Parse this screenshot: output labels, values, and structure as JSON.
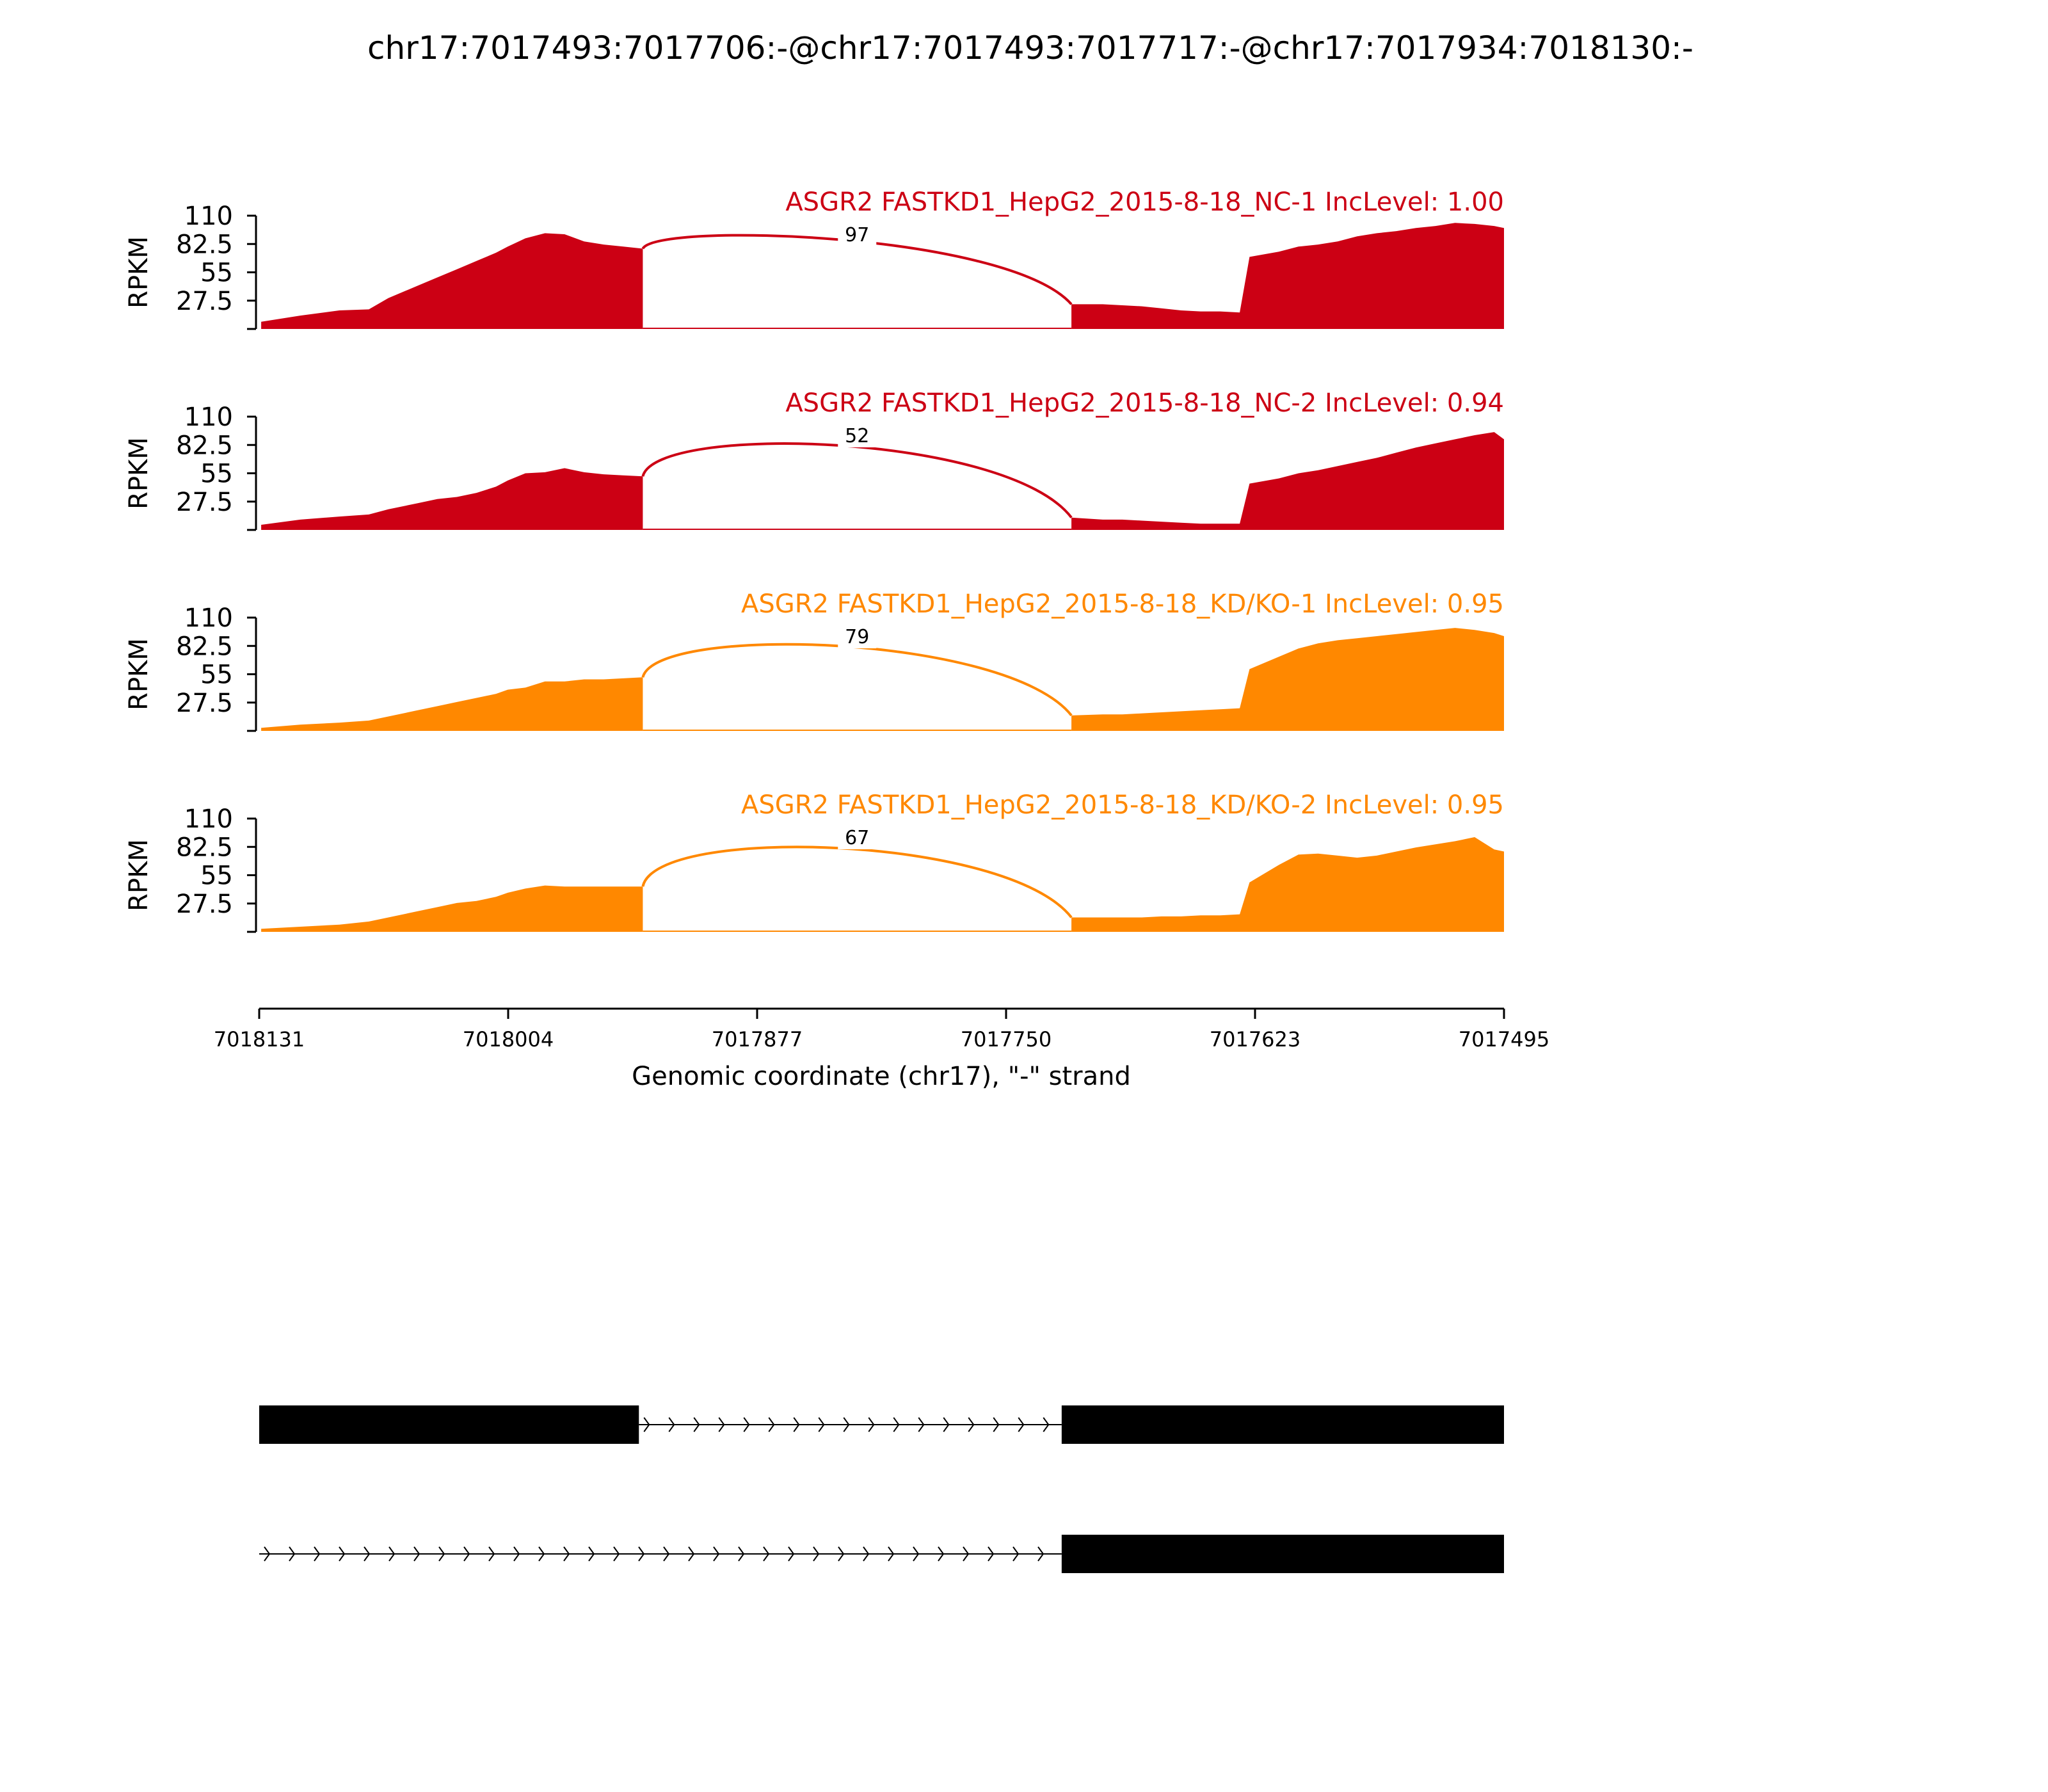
{
  "chart_data": {
    "type": "area",
    "title": "chr17:7017493:7017706:-@chr17:7017493:7017717:-@chr17:7017934:7018130:-",
    "xlabel": "Genomic coordinate (chr17), \"-\" strand",
    "ylabel": "RPKM",
    "x_reversed": true,
    "xlim": [
      7018131,
      7017495
    ],
    "x_ticks": [
      "7018131",
      "7018004",
      "7017877",
      "7017750",
      "7017623",
      "7017495"
    ],
    "ylim": [
      0,
      110
    ],
    "y_ticks": [
      "110",
      "82.5",
      "55",
      "27.5"
    ],
    "grid": false,
    "colors": {
      "NC": "#cc0014",
      "KD": "#ff8800",
      "gene": "#000000"
    },
    "samples": [
      {
        "name": "ASGR2 FASTKD1_HepG2_2015-8-18_NC-1 IncLevel: 1.00",
        "color": "#cc0014",
        "junction_reads": "97",
        "coverage": {
          "x": [
            7018130,
            7018110,
            7018090,
            7018075,
            7018065,
            7018050,
            7018040,
            7018030,
            7018020,
            7018010,
            7018004,
            7017995,
            7017985,
            7017975,
            7017965,
            7017955,
            7017945,
            7017935,
            7017716,
            7017700,
            7017690,
            7017680,
            7017670,
            7017660,
            7017650,
            7017640,
            7017630,
            7017625,
            7017610,
            7017600,
            7017590,
            7017580,
            7017570,
            7017560,
            7017550,
            7017540,
            7017530,
            7017520,
            7017510,
            7017500,
            7017495
          ],
          "y": [
            7,
            13,
            18,
            19,
            30,
            42,
            50,
            58,
            66,
            74,
            80,
            88,
            93,
            92,
            85,
            82,
            80,
            78,
            24,
            24,
            23,
            22,
            20,
            18,
            17,
            17,
            16,
            70,
            75,
            80,
            82,
            85,
            90,
            93,
            95,
            98,
            100,
            103,
            102,
            100,
            98
          ]
        }
      },
      {
        "name": "ASGR2 FASTKD1_HepG2_2015-8-18_NC-2 IncLevel: 0.94",
        "color": "#cc0014",
        "junction_reads": "52",
        "coverage": {
          "x": [
            7018130,
            7018110,
            7018090,
            7018075,
            7018065,
            7018050,
            7018040,
            7018030,
            7018020,
            7018010,
            7018004,
            7017995,
            7017985,
            7017975,
            7017965,
            7017955,
            7017945,
            7017935,
            7017716,
            7017700,
            7017690,
            7017680,
            7017670,
            7017660,
            7017650,
            7017640,
            7017630,
            7017625,
            7017610,
            7017600,
            7017590,
            7017580,
            7017570,
            7017560,
            7017550,
            7017540,
            7017530,
            7017520,
            7017510,
            7017500,
            7017495
          ],
          "y": [
            5,
            10,
            13,
            15,
            20,
            26,
            30,
            32,
            36,
            42,
            48,
            55,
            56,
            60,
            56,
            54,
            53,
            52,
            12,
            10,
            10,
            9,
            8,
            7,
            6,
            6,
            6,
            45,
            50,
            55,
            58,
            62,
            66,
            70,
            75,
            80,
            84,
            88,
            92,
            95,
            88
          ]
        }
      },
      {
        "name": "ASGR2 FASTKD1_HepG2_2015-8-18_KD/KO-1 IncLevel: 0.95",
        "color": "#ff8800",
        "junction_reads": "79",
        "coverage": {
          "x": [
            7018130,
            7018110,
            7018090,
            7018075,
            7018065,
            7018050,
            7018040,
            7018030,
            7018020,
            7018010,
            7018004,
            7017995,
            7017985,
            7017975,
            7017965,
            7017955,
            7017945,
            7017935,
            7017716,
            7017700,
            7017690,
            7017680,
            7017670,
            7017660,
            7017650,
            7017640,
            7017630,
            7017625,
            7017610,
            7017600,
            7017590,
            7017580,
            7017570,
            7017560,
            7017550,
            7017540,
            7017530,
            7017520,
            7017510,
            7017500,
            7017495
          ],
          "y": [
            3,
            6,
            8,
            10,
            14,
            20,
            24,
            28,
            32,
            36,
            40,
            42,
            48,
            48,
            50,
            50,
            51,
            52,
            15,
            16,
            16,
            17,
            18,
            19,
            20,
            21,
            22,
            60,
            72,
            80,
            85,
            88,
            90,
            92,
            94,
            96,
            98,
            100,
            98,
            95,
            92
          ]
        }
      },
      {
        "name": "ASGR2 FASTKD1_HepG2_2015-8-18_KD/KO-2 IncLevel: 0.95",
        "color": "#ff8800",
        "junction_reads": "67",
        "coverage": {
          "x": [
            7018130,
            7018110,
            7018090,
            7018075,
            7018065,
            7018050,
            7018040,
            7018030,
            7018020,
            7018010,
            7018004,
            7017995,
            7017985,
            7017975,
            7017965,
            7017955,
            7017945,
            7017935,
            7017716,
            7017700,
            7017690,
            7017680,
            7017670,
            7017660,
            7017650,
            7017640,
            7017630,
            7017625,
            7017610,
            7017600,
            7017590,
            7017580,
            7017570,
            7017560,
            7017550,
            7017540,
            7017530,
            7017520,
            7017510,
            7017500,
            7017495
          ],
          "y": [
            3,
            5,
            7,
            10,
            14,
            20,
            24,
            28,
            30,
            34,
            38,
            42,
            45,
            44,
            44,
            44,
            44,
            44,
            14,
            14,
            14,
            14,
            15,
            15,
            16,
            16,
            17,
            48,
            65,
            75,
            76,
            74,
            72,
            74,
            78,
            82,
            85,
            88,
            92,
            80,
            78
          ]
        }
      }
    ],
    "junction": {
      "start": 7017935,
      "end": 7017716
    },
    "gene_models": [
      {
        "exons": [
          [
            7018131,
            7017937
          ],
          [
            7017721,
            7017495
          ]
        ],
        "intron": [
          7017937,
          7017721
        ]
      },
      {
        "exons": [
          [
            7017721,
            7017495
          ]
        ],
        "intron": [
          7018131,
          7017721
        ]
      }
    ]
  }
}
